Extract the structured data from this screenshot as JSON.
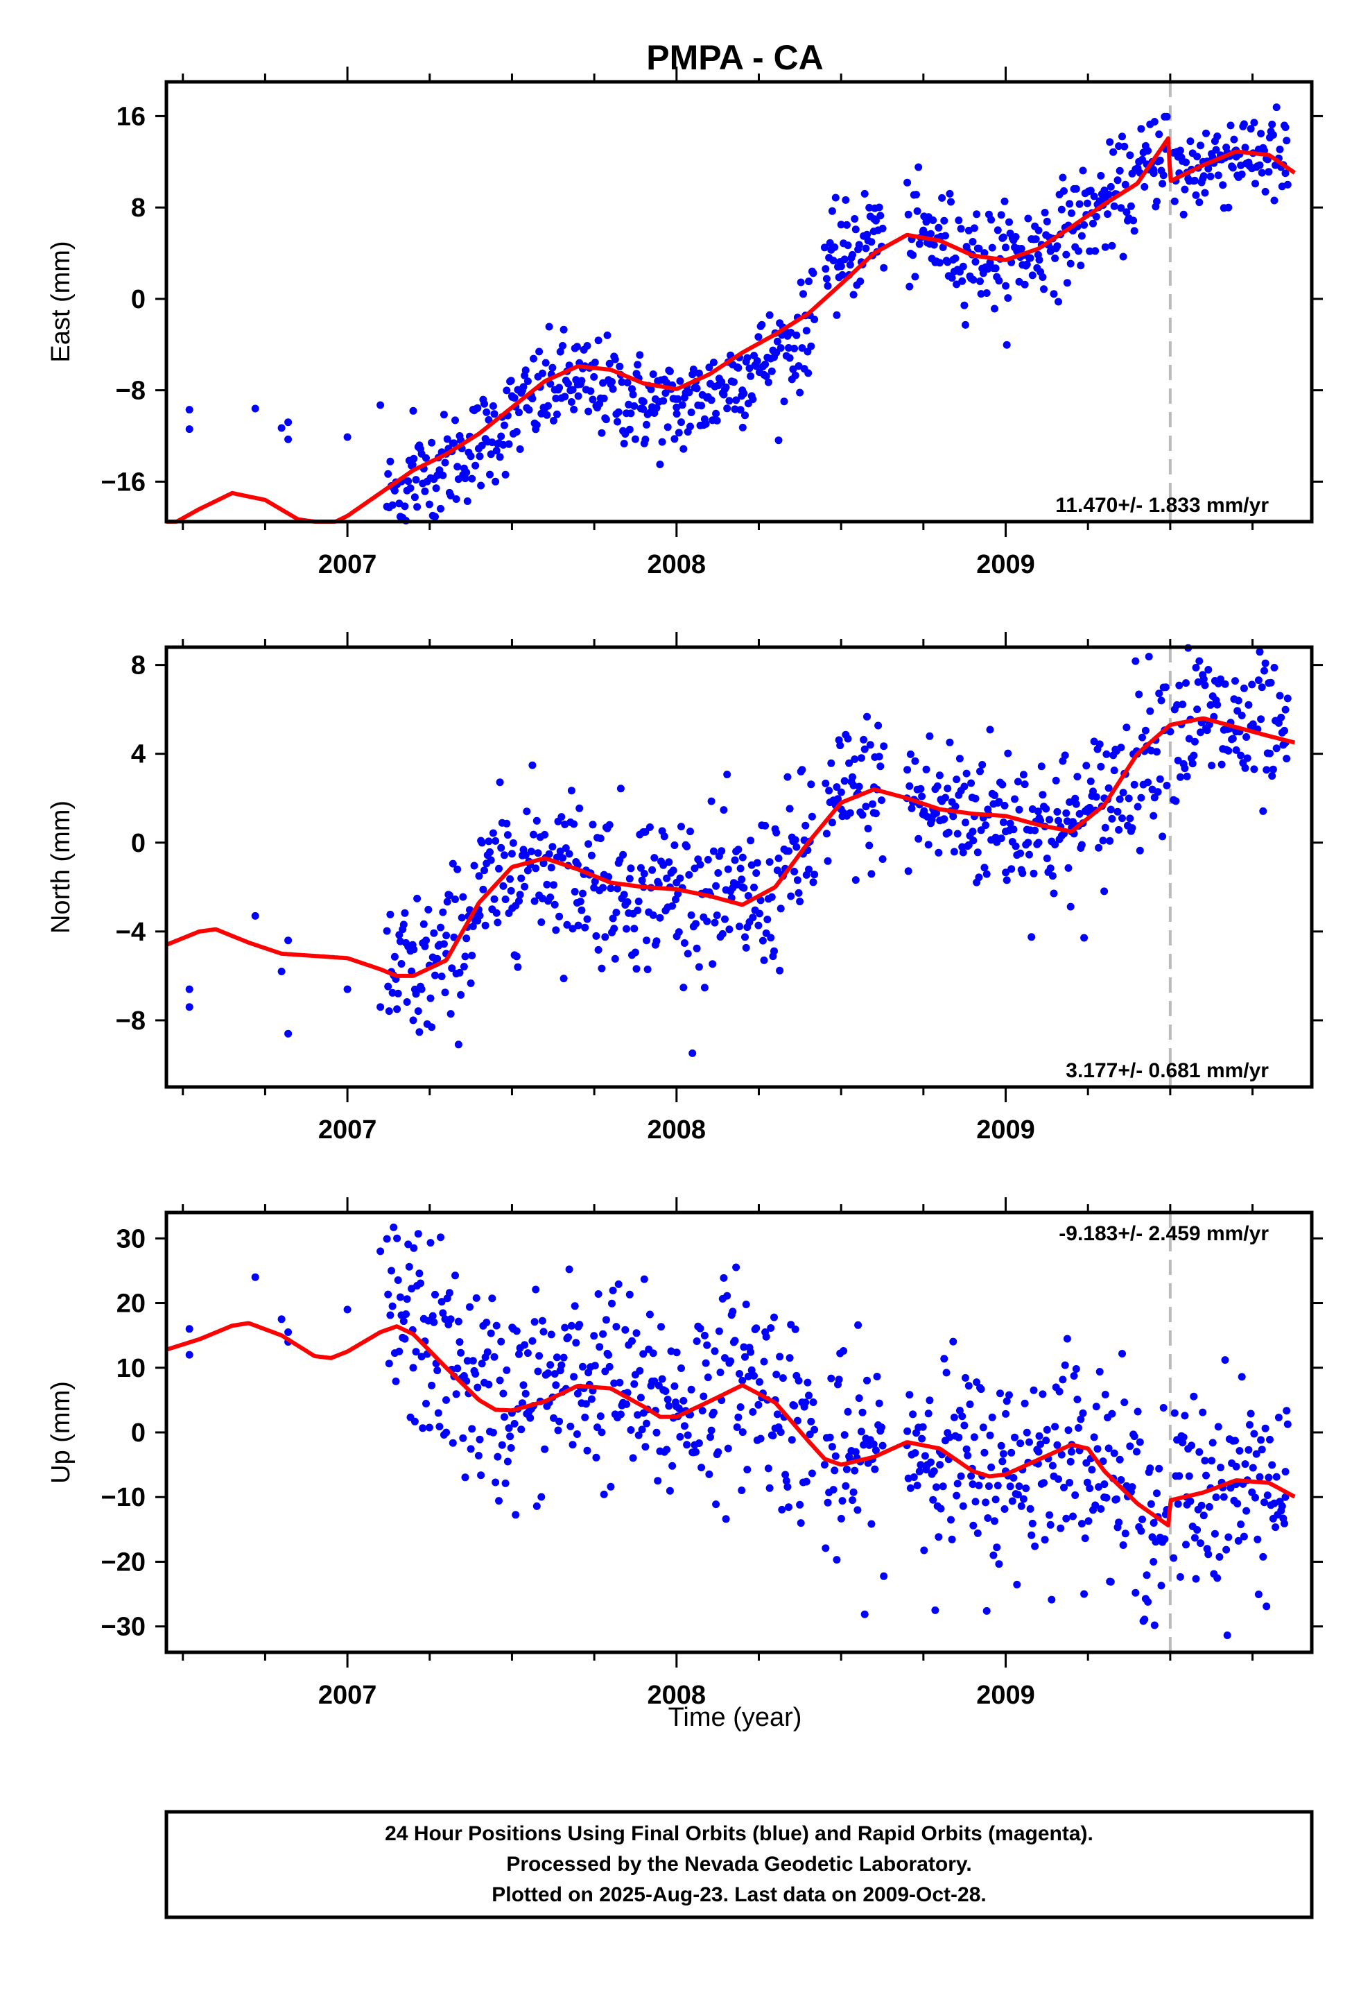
{
  "title": "PMPA - CA",
  "xlabel": "Time (year)",
  "caption": [
    "24 Hour Positions Using Final Orbits (blue) and Rapid Orbits (magenta).",
    "Processed by the Nevada Geodetic Laboratory.",
    "Plotted on 2025-Aug-23. Last data on 2009-Oct-28."
  ],
  "colors": {
    "points": "#0000ff",
    "model": "#ff0000",
    "event_line": "#bbbbbb",
    "frame": "#000000"
  },
  "chart_data": [
    {
      "type": "scatter",
      "title": "PMPA - CA",
      "xlabel": "",
      "ylabel": "East (mm)",
      "xlim": [
        2006.45,
        2009.93
      ],
      "ylim": [
        -19.5,
        19
      ],
      "xticks": [
        2007,
        2008,
        2009
      ],
      "yticks": [
        -16,
        -8,
        0,
        8,
        16
      ],
      "rate_text": "11.470+/- 1.833 mm/yr",
      "event_line_x": 2009.5,
      "points_sample": [
        [
          2006.52,
          -9.7
        ],
        [
          2006.52,
          -11.4
        ],
        [
          2006.72,
          -9.6
        ],
        [
          2006.8,
          -11.3
        ],
        [
          2006.82,
          -10.8
        ],
        [
          2006.82,
          -12.3
        ],
        [
          2007.0,
          -12.1
        ],
        [
          2007.1,
          -9.3
        ],
        [
          2007.2,
          -9.8
        ],
        [
          2007.5,
          -8.5
        ],
        [
          2007.7,
          -7.5
        ],
        [
          2007.9,
          -9.0
        ],
        [
          2008.0,
          -9.5
        ],
        [
          2008.2,
          -8.0
        ],
        [
          2008.4,
          -6.5
        ],
        [
          2008.45,
          4.5
        ],
        [
          2008.5,
          6.5
        ],
        [
          2008.6,
          7.0
        ],
        [
          2008.75,
          6.0
        ],
        [
          2008.9,
          5.0
        ],
        [
          2009.0,
          4.5
        ],
        [
          2009.1,
          6.0
        ],
        [
          2009.2,
          7.5
        ],
        [
          2009.3,
          9.5
        ],
        [
          2009.45,
          11.0
        ],
        [
          2009.6,
          12.0
        ],
        [
          2009.7,
          13.0
        ],
        [
          2009.85,
          11.0
        ]
      ],
      "model_knots": [
        [
          2006.45,
          -20.0
        ],
        [
          2006.55,
          -18.4
        ],
        [
          2006.65,
          -17.0
        ],
        [
          2006.75,
          -17.6
        ],
        [
          2006.85,
          -19.3
        ],
        [
          2006.95,
          -19.7
        ],
        [
          2007.0,
          -19.0
        ],
        [
          2007.1,
          -17.0
        ],
        [
          2007.2,
          -15.0
        ],
        [
          2007.3,
          -13.6
        ],
        [
          2007.4,
          -11.8
        ],
        [
          2007.5,
          -9.5
        ],
        [
          2007.6,
          -7.2
        ],
        [
          2007.7,
          -5.9
        ],
        [
          2007.8,
          -6.2
        ],
        [
          2007.9,
          -7.4
        ],
        [
          2008.0,
          -7.9
        ],
        [
          2008.1,
          -6.6
        ],
        [
          2008.2,
          -4.7
        ],
        [
          2008.3,
          -3.1
        ],
        [
          2008.4,
          -1.3
        ],
        [
          2008.5,
          1.3
        ],
        [
          2008.6,
          4.0
        ],
        [
          2008.7,
          5.6
        ],
        [
          2008.8,
          5.1
        ],
        [
          2008.9,
          3.8
        ],
        [
          2009.0,
          3.4
        ],
        [
          2009.1,
          4.4
        ],
        [
          2009.2,
          6.3
        ],
        [
          2009.3,
          8.3
        ],
        [
          2009.4,
          10.1
        ],
        [
          2009.495,
          14.1
        ],
        [
          2009.5,
          10.3
        ],
        [
          2009.6,
          11.7
        ],
        [
          2009.7,
          12.9
        ],
        [
          2009.8,
          12.6
        ],
        [
          2009.88,
          11.0
        ]
      ]
    },
    {
      "type": "scatter",
      "ylabel": "North (mm)",
      "xlim": [
        2006.45,
        2009.93
      ],
      "ylim": [
        -11,
        8.8
      ],
      "xticks": [
        2007,
        2008,
        2009
      ],
      "yticks": [
        -8,
        -4,
        0,
        4,
        8
      ],
      "rate_text": "3.177+/- 0.681 mm/yr",
      "event_line_x": 2009.5,
      "points_sample": [
        [
          2006.52,
          -6.6
        ],
        [
          2006.52,
          -7.4
        ],
        [
          2006.72,
          -3.3
        ],
        [
          2006.8,
          -5.8
        ],
        [
          2006.82,
          -4.4
        ],
        [
          2006.82,
          -8.6
        ],
        [
          2007.0,
          -6.6
        ],
        [
          2007.1,
          -7.4
        ],
        [
          2007.2,
          -8.0
        ],
        [
          2007.3,
          -5.0
        ],
        [
          2007.4,
          -1.5
        ],
        [
          2007.5,
          -0.5
        ],
        [
          2007.7,
          -1.0
        ],
        [
          2007.9,
          -2.0
        ],
        [
          2008.0,
          -1.8
        ],
        [
          2008.2,
          -2.0
        ],
        [
          2008.4,
          0.0
        ],
        [
          2008.5,
          1.5
        ],
        [
          2008.6,
          2.5
        ],
        [
          2008.7,
          2.0
        ],
        [
          2008.8,
          1.0
        ],
        [
          2008.9,
          0.5
        ],
        [
          2009.0,
          0.5
        ],
        [
          2009.1,
          0.0
        ],
        [
          2009.2,
          0.5
        ],
        [
          2009.3,
          2.0
        ],
        [
          2009.4,
          4.0
        ],
        [
          2009.5,
          5.0
        ],
        [
          2009.6,
          5.5
        ],
        [
          2009.7,
          5.0
        ],
        [
          2009.85,
          4.5
        ]
      ],
      "model_knots": [
        [
          2006.45,
          -4.6
        ],
        [
          2006.55,
          -4.0
        ],
        [
          2006.6,
          -3.9
        ],
        [
          2006.7,
          -4.5
        ],
        [
          2006.8,
          -5.0
        ],
        [
          2006.9,
          -5.1
        ],
        [
          2007.0,
          -5.2
        ],
        [
          2007.1,
          -5.7
        ],
        [
          2007.15,
          -6.0
        ],
        [
          2007.2,
          -6.0
        ],
        [
          2007.3,
          -5.3
        ],
        [
          2007.4,
          -2.7
        ],
        [
          2007.5,
          -1.1
        ],
        [
          2007.6,
          -0.7
        ],
        [
          2007.7,
          -1.2
        ],
        [
          2007.8,
          -1.8
        ],
        [
          2007.9,
          -2.0
        ],
        [
          2008.0,
          -2.1
        ],
        [
          2008.1,
          -2.4
        ],
        [
          2008.2,
          -2.8
        ],
        [
          2008.3,
          -2.0
        ],
        [
          2008.4,
          0.0
        ],
        [
          2008.5,
          1.8
        ],
        [
          2008.6,
          2.4
        ],
        [
          2008.7,
          2.0
        ],
        [
          2008.8,
          1.5
        ],
        [
          2008.9,
          1.3
        ],
        [
          2009.0,
          1.2
        ],
        [
          2009.1,
          0.8
        ],
        [
          2009.2,
          0.5
        ],
        [
          2009.3,
          1.7
        ],
        [
          2009.4,
          4.0
        ],
        [
          2009.5,
          5.3
        ],
        [
          2009.6,
          5.6
        ],
        [
          2009.7,
          5.2
        ],
        [
          2009.8,
          4.8
        ],
        [
          2009.88,
          4.5
        ]
      ]
    },
    {
      "type": "scatter",
      "ylabel": "Up (mm)",
      "xlim": [
        2006.45,
        2009.93
      ],
      "ylim": [
        -34,
        34
      ],
      "xticks": [
        2007,
        2008,
        2009
      ],
      "yticks": [
        -30,
        -20,
        -10,
        0,
        10,
        20,
        30
      ],
      "rate_text": "-9.183+/- 2.459 mm/yr",
      "event_line_x": 2009.5,
      "points_sample": [
        [
          2006.52,
          16.0
        ],
        [
          2006.52,
          12.0
        ],
        [
          2006.72,
          24.0
        ],
        [
          2006.8,
          17.5
        ],
        [
          2006.82,
          14.0
        ],
        [
          2006.82,
          15.5
        ],
        [
          2007.0,
          19.0
        ],
        [
          2007.1,
          28.0
        ],
        [
          2007.2,
          10.0
        ],
        [
          2007.3,
          5.0
        ],
        [
          2007.5,
          3.0
        ],
        [
          2007.7,
          6.0
        ],
        [
          2007.9,
          3.0
        ],
        [
          2008.0,
          4.0
        ],
        [
          2008.2,
          8.0
        ],
        [
          2008.3,
          5.0
        ],
        [
          2008.45,
          -5.0
        ],
        [
          2008.55,
          -12.0
        ],
        [
          2008.7,
          -2.0
        ],
        [
          2008.8,
          -5.0
        ],
        [
          2008.9,
          -8.0
        ],
        [
          2009.0,
          -6.0
        ],
        [
          2009.1,
          -3.0
        ],
        [
          2009.2,
          -3.0
        ],
        [
          2009.3,
          -8.0
        ],
        [
          2009.45,
          -14.0
        ],
        [
          2009.55,
          -10.0
        ],
        [
          2009.7,
          -8.0
        ],
        [
          2009.85,
          -10.0
        ]
      ],
      "model_knots": [
        [
          2006.45,
          12.8
        ],
        [
          2006.55,
          14.4
        ],
        [
          2006.65,
          16.5
        ],
        [
          2006.7,
          16.9
        ],
        [
          2006.8,
          15.0
        ],
        [
          2006.9,
          11.8
        ],
        [
          2006.95,
          11.5
        ],
        [
          2007.0,
          12.5
        ],
        [
          2007.1,
          15.5
        ],
        [
          2007.15,
          16.4
        ],
        [
          2007.2,
          15.2
        ],
        [
          2007.3,
          10.0
        ],
        [
          2007.4,
          5.0
        ],
        [
          2007.45,
          3.5
        ],
        [
          2007.5,
          3.4
        ],
        [
          2007.6,
          4.8
        ],
        [
          2007.7,
          7.2
        ],
        [
          2007.8,
          6.8
        ],
        [
          2007.9,
          4.0
        ],
        [
          2007.95,
          2.4
        ],
        [
          2008.0,
          2.4
        ],
        [
          2008.1,
          4.8
        ],
        [
          2008.2,
          7.3
        ],
        [
          2008.3,
          4.6
        ],
        [
          2008.4,
          -1.3
        ],
        [
          2008.45,
          -4.1
        ],
        [
          2008.5,
          -5.0
        ],
        [
          2008.6,
          -3.8
        ],
        [
          2008.7,
          -1.5
        ],
        [
          2008.8,
          -2.5
        ],
        [
          2008.9,
          -6.0
        ],
        [
          2008.95,
          -6.8
        ],
        [
          2009.0,
          -6.5
        ],
        [
          2009.1,
          -4.2
        ],
        [
          2009.2,
          -1.9
        ],
        [
          2009.25,
          -2.5
        ],
        [
          2009.3,
          -6.0
        ],
        [
          2009.4,
          -11.0
        ],
        [
          2009.495,
          -14.4
        ],
        [
          2009.5,
          -10.5
        ],
        [
          2009.6,
          -9.3
        ],
        [
          2009.7,
          -7.4
        ],
        [
          2009.8,
          -7.8
        ],
        [
          2009.88,
          -10.0
        ]
      ]
    }
  ]
}
